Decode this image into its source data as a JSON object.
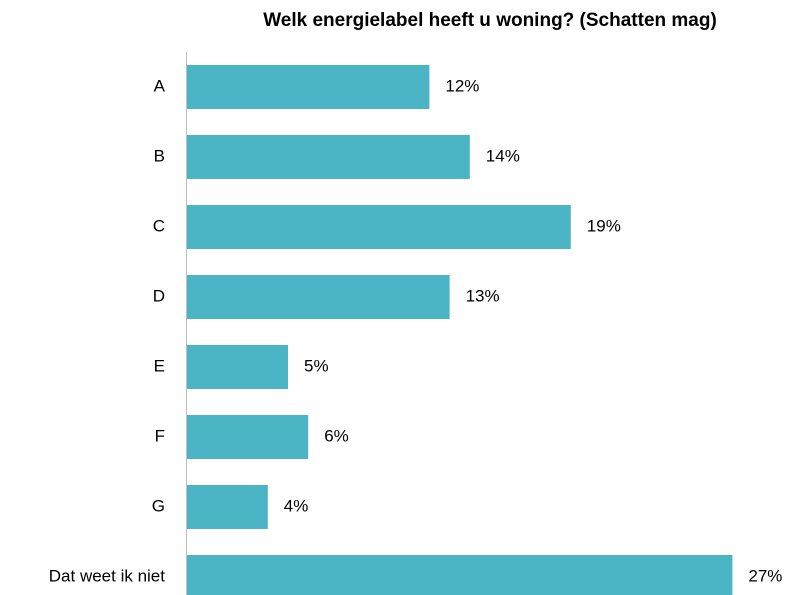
{
  "chart_data": {
    "type": "bar",
    "orientation": "horizontal",
    "title": "Welk energielabel heeft u woning? (Schatten mag)",
    "categories": [
      "A",
      "B",
      "C",
      "D",
      "E",
      "F",
      "G",
      "Dat weet ik niet"
    ],
    "values": [
      12,
      14,
      19,
      13,
      5,
      6,
      4,
      27
    ],
    "value_labels": [
      "12%",
      "14%",
      "19%",
      "13%",
      "5%",
      "6%",
      "4%",
      "27%"
    ],
    "color": "#4bb5c5"
  }
}
